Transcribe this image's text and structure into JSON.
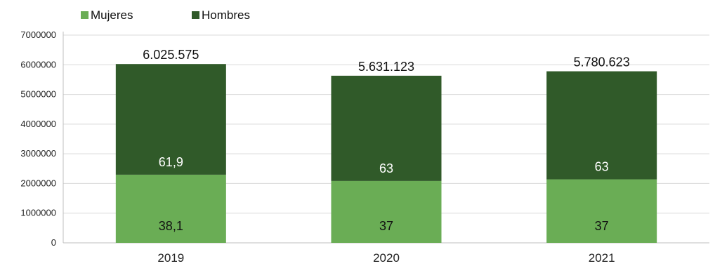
{
  "chart_data": {
    "type": "bar",
    "stacked": true,
    "categories": [
      "2019",
      "2020",
      "2021"
    ],
    "totals": [
      6025575,
      5631123,
      5780623
    ],
    "total_labels": [
      "6.025.575",
      "5.631.123",
      "5.780.623"
    ],
    "series": [
      {
        "name": "Mujeres",
        "color": "#6aad55",
        "percent": [
          38.1,
          37,
          37
        ],
        "labels": [
          "38,1",
          "37",
          "37"
        ]
      },
      {
        "name": "Hombres",
        "color": "#305a29",
        "percent": [
          61.9,
          63,
          63
        ],
        "labels": [
          "61,9",
          "63",
          "63"
        ]
      }
    ],
    "y_ticks": [
      "0",
      "1000000",
      "2000000",
      "3000000",
      "4000000",
      "5000000",
      "6000000",
      "7000000"
    ],
    "ylim": [
      0,
      7000000
    ],
    "grid": true,
    "legend": "top-left",
    "title": "",
    "xlabel": "",
    "ylabel": ""
  }
}
